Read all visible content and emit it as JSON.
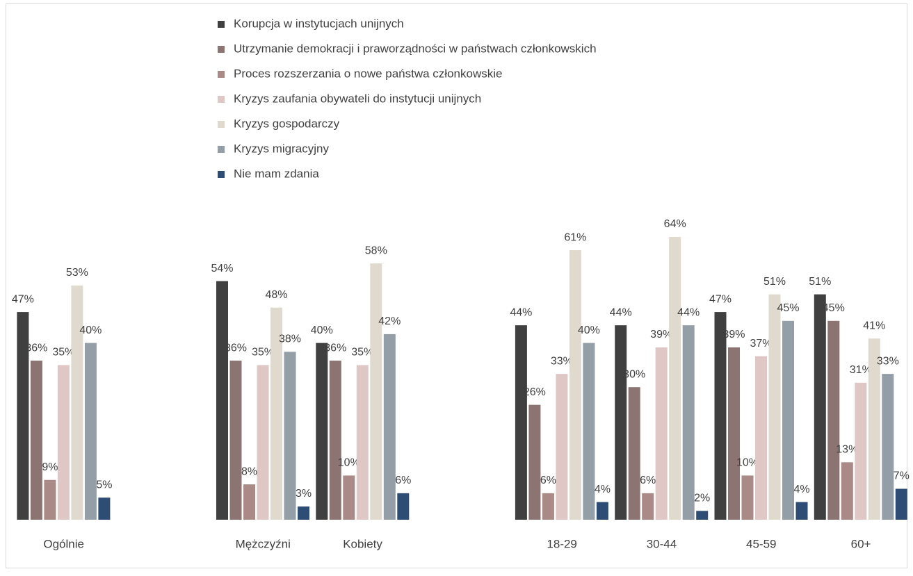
{
  "chart_data": {
    "type": "bar",
    "categories": [
      "Ogólnie",
      null,
      "Mężczyźni",
      "Kobiety",
      null,
      "18-29",
      "30-44",
      "45-59",
      "60+"
    ],
    "series": [
      {
        "name": "Korupcja w instytucjach unijnych",
        "color": "#404040",
        "values": [
          47,
          null,
          54,
          40,
          null,
          44,
          44,
          47,
          51
        ],
        "value_labels": [
          "47%",
          null,
          "54%",
          "40%",
          null,
          "44%",
          "44%",
          "47%",
          "51%"
        ]
      },
      {
        "name": "Utrzymanie demokracji i praworządności w państwach członkowskich",
        "color": "#8b7472",
        "values": [
          36,
          null,
          36,
          36,
          null,
          26,
          30,
          39,
          45
        ],
        "value_labels": [
          "36%",
          null,
          "36%",
          "36%",
          null,
          "26%",
          "30%",
          "39%",
          "45%"
        ]
      },
      {
        "name": "Proces rozszerzania o nowe państwa członkowskie",
        "color": "#a98a86",
        "values": [
          9,
          null,
          8,
          10,
          null,
          6,
          6,
          10,
          13
        ],
        "value_labels": [
          "9%",
          null,
          "8%",
          "10%",
          null,
          "6%",
          "6%",
          "10%",
          "13%"
        ]
      },
      {
        "name": "Kryzys zaufania obywateli do  instytucji unijnych",
        "color": "#dfc7c6",
        "values": [
          35,
          null,
          35,
          35,
          null,
          33,
          39,
          37,
          31
        ],
        "value_labels": [
          "35%",
          null,
          "35%",
          "35%",
          null,
          "33%",
          "39%",
          "37%",
          "31%"
        ]
      },
      {
        "name": "Kryzys gospodarczy",
        "color": "#e0dace",
        "values": [
          53,
          null,
          48,
          58,
          null,
          61,
          64,
          51,
          41
        ],
        "value_labels": [
          "53%",
          null,
          "48%",
          "58%",
          null,
          "61%",
          "64%",
          "51%",
          "41%"
        ]
      },
      {
        "name": "Kryzys migracyjny",
        "color": "#939ea7",
        "values": [
          40,
          null,
          38,
          42,
          null,
          40,
          44,
          45,
          33
        ],
        "value_labels": [
          "40%",
          null,
          "38%",
          "42%",
          null,
          "40%",
          "44%",
          "45%",
          "33%"
        ]
      },
      {
        "name": "Nie mam zdania",
        "color": "#2e4d74",
        "values": [
          5,
          null,
          3,
          6,
          null,
          4,
          2,
          4,
          7
        ],
        "value_labels": [
          "5%",
          null,
          "3%",
          "6%",
          null,
          "4%",
          "2%",
          "4%",
          "7%"
        ]
      }
    ]
  }
}
